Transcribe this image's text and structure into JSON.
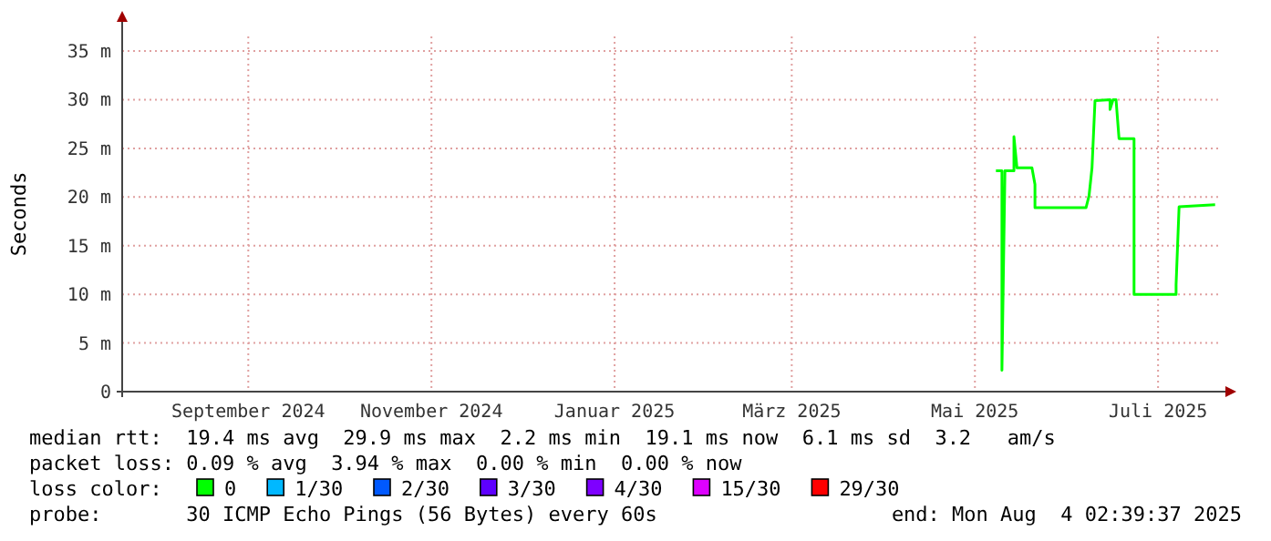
{
  "chart_data": {
    "type": "line",
    "ylabel": "Seconds",
    "legend_title": "loss color:",
    "legend": "bottom",
    "grid": true,
    "xlim": [
      "2024-08-04",
      "2025-08-04"
    ],
    "xticks": [
      {
        "value": "2024-09-15",
        "label": "September 2024"
      },
      {
        "value": "2024-11-15",
        "label": "November 2024"
      },
      {
        "value": "2025-01-15",
        "label": "Januar 2025"
      },
      {
        "value": "2025-03-15",
        "label": "März 2025"
      },
      {
        "value": "2025-05-15",
        "label": "Mai 2025"
      },
      {
        "value": "2025-07-15",
        "label": "Juli 2025"
      }
    ],
    "ylim": [
      0,
      36.5
    ],
    "yticks": [
      {
        "value": 0,
        "label": "0"
      },
      {
        "value": 5,
        "label": "5 m"
      },
      {
        "value": 10,
        "label": "10 m"
      },
      {
        "value": 15,
        "label": "15 m"
      },
      {
        "value": 20,
        "label": "20 m"
      },
      {
        "value": 25,
        "label": "25 m"
      },
      {
        "value": 30,
        "label": "30 m"
      },
      {
        "value": 35,
        "label": "35 m"
      }
    ],
    "x": [
      "2025-05-22",
      "2025-05-24",
      "2025-05-24",
      "2025-05-25",
      "2025-05-28",
      "2025-05-28",
      "2025-05-29",
      "2025-06-03",
      "2025-06-04",
      "2025-06-04",
      "2025-06-21",
      "2025-06-22",
      "2025-06-23",
      "2025-06-24",
      "2025-06-29",
      "2025-06-29",
      "2025-06-30",
      "2025-07-01",
      "2025-07-02",
      "2025-07-07",
      "2025-07-07",
      "2025-07-21",
      "2025-07-21",
      "2025-07-22",
      "2025-08-03"
    ],
    "series": [
      {
        "name": "0",
        "color": "#00ff00",
        "values": [
          22.7,
          22.7,
          2.2,
          22.7,
          22.7,
          26.2,
          23.0,
          23.0,
          21.3,
          18.9,
          18.9,
          20.1,
          23.0,
          29.9,
          30.0,
          29.0,
          30.0,
          30.0,
          26.0,
          26.0,
          10.0,
          10.0,
          11.0,
          19.0,
          19.2
        ]
      },
      {
        "name": "1/30",
        "color": "#00b8ff",
        "values": [
          null,
          null,
          null,
          null,
          null,
          null,
          null,
          null,
          null,
          null,
          null,
          null,
          null,
          null,
          null,
          null,
          null,
          null,
          null,
          null,
          null,
          null,
          null,
          null,
          null
        ]
      },
      {
        "name": "2/30",
        "color": "#0059ff",
        "values": [
          null,
          null,
          null,
          null,
          null,
          null,
          null,
          null,
          null,
          null,
          null,
          null,
          null,
          null,
          null,
          null,
          null,
          null,
          null,
          null,
          null,
          null,
          null,
          null,
          null
        ]
      },
      {
        "name": "3/30",
        "color": "#5e00ff",
        "values": [
          null,
          null,
          null,
          null,
          null,
          null,
          null,
          null,
          null,
          null,
          null,
          null,
          null,
          null,
          null,
          null,
          null,
          null,
          null,
          null,
          null,
          null,
          null,
          null,
          null
        ]
      },
      {
        "name": "4/30",
        "color": "#7e00ff",
        "values": [
          null,
          null,
          null,
          null,
          null,
          null,
          null,
          null,
          null,
          null,
          null,
          null,
          null,
          null,
          null,
          null,
          null,
          null,
          null,
          null,
          null,
          null,
          null,
          null,
          null
        ]
      },
      {
        "name": "15/30",
        "color": "#dd00ff",
        "values": [
          null,
          null,
          null,
          null,
          null,
          null,
          null,
          null,
          null,
          null,
          null,
          null,
          null,
          null,
          null,
          null,
          null,
          null,
          null,
          null,
          null,
          null,
          null,
          null,
          null
        ]
      },
      {
        "name": "29/30",
        "color": "#ff0000",
        "values": [
          null,
          null,
          null,
          null,
          null,
          null,
          null,
          null,
          null,
          null,
          null,
          null,
          null,
          null,
          null,
          null,
          null,
          null,
          null,
          null,
          null,
          null,
          null,
          null,
          null
        ]
      }
    ],
    "annotations": [
      "median rtt:  19.4 ms avg  29.9 ms max  2.2 ms min  19.1 ms now  6.1 ms sd  3.2   am/s",
      "packet loss: 0.09 % avg  3.94 % max  0.00 % min  0.00 % now",
      "probe:       30 ICMP Echo Pings (56 Bytes) every 60s",
      "end: Mon Aug  4 02:39:37 2025"
    ]
  }
}
